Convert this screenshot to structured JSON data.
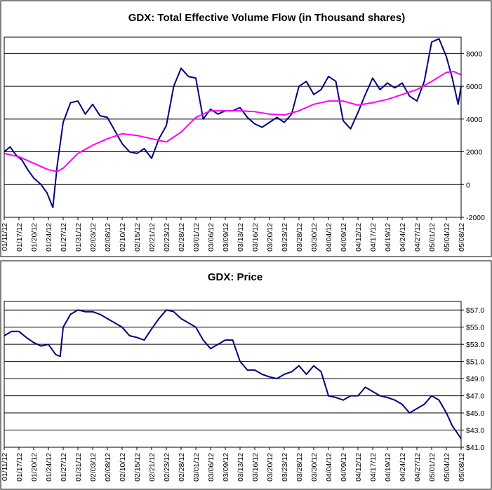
{
  "chart_data": [
    {
      "type": "line",
      "title": "GDX: Total Effective Volume Flow (in Thousand shares)",
      "xlabel": "",
      "ylabel": "",
      "ylim": [
        -2000,
        9000
      ],
      "yticks": [
        -2000,
        0,
        2000,
        4000,
        6000,
        8000
      ],
      "y_tick_labels": [
        "-2000",
        "0",
        "2000",
        "4000",
        "6000",
        "8000"
      ],
      "y_axis_side": "right",
      "grid": "horizontal",
      "x_tick_labels": [
        "01/11/12",
        "01/17/12",
        "01/20/12",
        "01/24/12",
        "01/27/12",
        "01/31/12",
        "02/03/12",
        "02/08/12",
        "02/10/12",
        "02/15/12",
        "02/21/12",
        "02/23/12",
        "02/28/12",
        "03/01/12",
        "03/06/12",
        "03/09/12",
        "03/13/12",
        "03/16/12",
        "03/20/12",
        "03/23/12",
        "03/28/12",
        "03/30/12",
        "04/04/12",
        "04/09/12",
        "04/12/12",
        "04/17/12",
        "04/19/12",
        "04/24/12",
        "04/27/12",
        "05/01/12",
        "05/04/12",
        "05/08/12"
      ],
      "series": [
        {
          "color": "#000080",
          "x": [
            0,
            0.4,
            0.8,
            1.2,
            1.6,
            2,
            2.5,
            2.9,
            3.3,
            3.6,
            4,
            4.5,
            5,
            5.5,
            6,
            6.5,
            7,
            7.5,
            8,
            8.5,
            9,
            9.5,
            10,
            10.5,
            11,
            11.5,
            12,
            12.5,
            13,
            13.5,
            14,
            14.5,
            15,
            15.5,
            16,
            16.5,
            17,
            17.5,
            18,
            18.5,
            19,
            19.5,
            20,
            20.5,
            21,
            21.5,
            22,
            22.5,
            23,
            23.5,
            24,
            24.5,
            25,
            25.5,
            26,
            26.5,
            27,
            27.5,
            28,
            28.5,
            29,
            29.5,
            30,
            30.4,
            30.8,
            31
          ],
          "y": [
            2000,
            2300,
            1800,
            1500,
            900,
            400,
            0,
            -500,
            -1400,
            1200,
            3800,
            5000,
            5100,
            4300,
            4900,
            4200,
            4100,
            3300,
            2500,
            2000,
            1900,
            2200,
            1600,
            2800,
            3600,
            6000,
            7100,
            6600,
            6500,
            4000,
            4600,
            4300,
            4500,
            4500,
            4700,
            4100,
            3700,
            3500,
            3800,
            4100,
            3800,
            4300,
            6000,
            6300,
            5500,
            5800,
            6600,
            6300,
            3900,
            3400,
            4400,
            5500,
            6500,
            5800,
            6200,
            5900,
            6200,
            5400,
            5100,
            6300,
            8700,
            8900,
            7800,
            6500,
            4900,
            6000
          ]
        },
        {
          "color": "#ff00ff",
          "x": [
            0,
            1,
            2,
            3,
            3.6,
            4,
            5,
            6,
            7,
            8,
            9,
            10,
            11,
            12,
            13,
            14,
            15,
            16,
            17,
            18,
            19,
            20,
            21,
            22,
            23,
            24,
            25,
            26,
            27,
            28,
            29,
            30,
            30.5,
            31
          ],
          "y": [
            1900,
            1700,
            1300,
            900,
            800,
            1000,
            1900,
            2400,
            2800,
            3100,
            3000,
            2800,
            2600,
            3200,
            4100,
            4500,
            4500,
            4500,
            4450,
            4300,
            4250,
            4500,
            4900,
            5100,
            5100,
            4850,
            5000,
            5200,
            5500,
            5800,
            6300,
            6850,
            6900,
            6700
          ]
        }
      ]
    },
    {
      "type": "line",
      "title": "GDX: Price",
      "xlabel": "",
      "ylabel": "",
      "ylim": [
        41,
        58
      ],
      "yticks": [
        41,
        43,
        45,
        47,
        49,
        51,
        53,
        55,
        57
      ],
      "y_tick_labels": [
        "$41.0",
        "$43.0",
        "$45.0",
        "$47.0",
        "$49.0",
        "$51.0",
        "$53.0",
        "$55.0",
        "$57.0"
      ],
      "y_axis_side": "right",
      "grid": "horizontal",
      "x_tick_labels": [
        "01/11/12",
        "01/17/12",
        "01/20/12",
        "01/24/12",
        "01/27/12",
        "01/31/12",
        "02/03/12",
        "02/08/12",
        "02/10/12",
        "02/15/12",
        "02/21/12",
        "02/23/12",
        "02/28/12",
        "03/01/12",
        "03/06/12",
        "03/09/12",
        "03/13/12",
        "03/16/12",
        "03/20/12",
        "03/23/12",
        "03/28/12",
        "03/30/12",
        "04/04/12",
        "04/09/12",
        "04/12/12",
        "04/17/12",
        "04/19/12",
        "04/24/12",
        "04/27/12",
        "05/01/12",
        "05/04/12",
        "05/08/12"
      ],
      "series": [
        {
          "color": "#000080",
          "x": [
            0,
            0.5,
            1,
            1.5,
            2,
            2.5,
            3,
            3.5,
            3.8,
            4,
            4.5,
            5,
            5.5,
            6,
            6.5,
            7,
            7.5,
            8,
            8.5,
            9,
            9.5,
            10,
            10.5,
            11,
            11.5,
            12,
            12.5,
            13,
            13.5,
            14,
            14.5,
            15,
            15.5,
            16,
            16.5,
            17,
            17.5,
            18,
            18.5,
            19,
            19.5,
            20,
            20.5,
            21,
            21.5,
            22,
            22.5,
            23,
            23.5,
            24,
            24.5,
            25,
            25.5,
            26,
            26.5,
            27,
            27.5,
            28,
            28.5,
            29,
            29.5,
            30,
            30.4,
            30.8,
            31
          ],
          "y": [
            54,
            54.5,
            54.5,
            53.8,
            53.2,
            52.8,
            53,
            51.8,
            51.6,
            55,
            56.5,
            57,
            56.8,
            56.8,
            56.5,
            56,
            55.5,
            55,
            54,
            53.8,
            53.5,
            54.8,
            56,
            57,
            56.8,
            56,
            55.5,
            55,
            53.5,
            52.5,
            53,
            53.5,
            53.5,
            51,
            50,
            50,
            49.5,
            49.2,
            49,
            49.5,
            49.8,
            50.5,
            49.5,
            50.5,
            49.8,
            47,
            46.8,
            46.5,
            47,
            47,
            48,
            47.5,
            47,
            46.8,
            46.5,
            46,
            45,
            45.5,
            46,
            47,
            46.5,
            45,
            43.5,
            42.5,
            42
          ]
        }
      ]
    }
  ]
}
